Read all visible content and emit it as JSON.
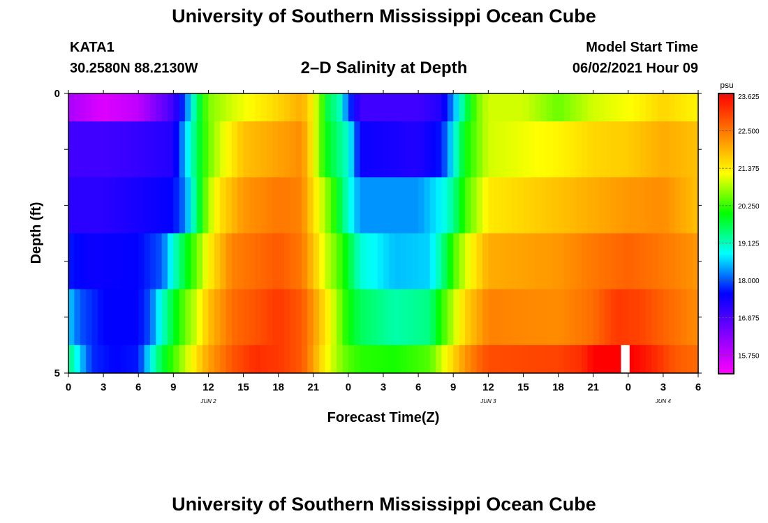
{
  "page": {
    "title_top": "University of Southern Mississippi Ocean Cube",
    "title_bottom": "University of Southern Mississippi Ocean Cube",
    "station": "KATA1",
    "coords": "30.2580N  88.2130W",
    "subtitle": "2–D Salinity at Depth",
    "model_start_label": "Model Start Time",
    "model_start_value": "06/02/2021 Hour 09"
  },
  "chart_data": {
    "type": "heatmap",
    "title": "2–D Salinity at Depth",
    "xlabel": "Forecast Time(Z)",
    "ylabel": "Depth (ft)",
    "x_tick_labels": [
      "0",
      "3",
      "6",
      "9",
      "12",
      "15",
      "18",
      "21",
      "0",
      "3",
      "6",
      "9",
      "12",
      "15",
      "18",
      "21",
      "0",
      "3",
      "6"
    ],
    "day_labels": [
      {
        "text": "JUN 2",
        "hour": 12
      },
      {
        "text": "JUN 3",
        "hour": 36
      },
      {
        "text": "JUN 4",
        "hour": 51
      }
    ],
    "y_tick_labels": [
      "0",
      "5"
    ],
    "y_range": [
      0,
      5
    ],
    "x_range_hours": [
      0,
      54
    ],
    "colorbar": {
      "unit": "psu",
      "min": 15.19,
      "max": 23.625,
      "tick_labels": [
        "23.625",
        "22.500",
        "21.375",
        "20.250",
        "19.125",
        "18.000",
        "16.875",
        "15.750"
      ],
      "colors": [
        "#ff00ff",
        "#8000ff",
        "#0000ff",
        "#00ffff",
        "#00ff00",
        "#ffff00",
        "#ff8000",
        "#ff0000"
      ]
    },
    "missing_hours": [
      47.5
    ],
    "profiles": [
      {
        "depth_band": "0–0.5",
        "keyframes": [
          [
            0,
            16.0
          ],
          [
            3,
            15.5
          ],
          [
            6,
            15.8
          ],
          [
            9,
            17.0
          ],
          [
            10,
            18.0
          ],
          [
            11,
            19.5
          ],
          [
            12,
            20.6
          ],
          [
            14,
            21.0
          ],
          [
            16,
            21.3
          ],
          [
            18,
            21.6
          ],
          [
            20,
            22.0
          ],
          [
            21,
            21.3
          ],
          [
            22,
            20.0
          ],
          [
            22.5,
            19.3
          ],
          [
            23,
            19.5
          ],
          [
            24,
            18.0
          ],
          [
            25,
            17.0
          ],
          [
            27,
            17.0
          ],
          [
            30,
            17.0
          ],
          [
            32,
            17.3
          ],
          [
            33,
            18.3
          ],
          [
            34,
            19.5
          ],
          [
            35,
            20.5
          ],
          [
            36,
            21.0
          ],
          [
            39,
            21.0
          ],
          [
            42,
            20.5
          ],
          [
            45,
            21.0
          ],
          [
            48,
            21.2
          ],
          [
            51,
            21.6
          ],
          [
            54,
            21.3
          ]
        ]
      },
      {
        "depth_band": "0.5–1.5",
        "keyframes": [
          [
            0,
            17.0
          ],
          [
            3,
            17.0
          ],
          [
            6,
            17.1
          ],
          [
            9,
            17.3
          ],
          [
            10,
            18.5
          ],
          [
            11,
            19.6
          ],
          [
            12,
            20.5
          ],
          [
            13,
            21.0
          ],
          [
            15,
            21.8
          ],
          [
            18,
            22.1
          ],
          [
            20,
            22.3
          ],
          [
            21,
            21.3
          ],
          [
            22,
            20.0
          ],
          [
            23,
            19.5
          ],
          [
            24,
            19.0
          ],
          [
            25,
            17.5
          ],
          [
            30,
            17.3
          ],
          [
            32,
            17.7
          ],
          [
            33,
            18.8
          ],
          [
            34,
            20.0
          ],
          [
            35,
            20.5
          ],
          [
            36,
            21.0
          ],
          [
            42,
            21.3
          ],
          [
            45,
            21.6
          ],
          [
            48,
            21.7
          ],
          [
            51,
            22.0
          ],
          [
            54,
            21.8
          ]
        ]
      },
      {
        "depth_band": "1.5–2.5",
        "keyframes": [
          [
            0,
            17.2
          ],
          [
            3,
            17.2
          ],
          [
            6,
            17.4
          ],
          [
            9,
            17.6
          ],
          [
            10,
            18.2
          ],
          [
            11,
            19.5
          ],
          [
            12,
            20.8
          ],
          [
            13,
            21.5
          ],
          [
            15,
            22.2
          ],
          [
            18,
            22.5
          ],
          [
            20,
            22.4
          ],
          [
            21,
            21.5
          ],
          [
            22,
            20.8
          ],
          [
            23,
            20.0
          ],
          [
            24,
            19.0
          ],
          [
            25,
            18.3
          ],
          [
            30,
            18.3
          ],
          [
            32,
            18.8
          ],
          [
            33,
            19.3
          ],
          [
            34,
            20.3
          ],
          [
            35,
            20.8
          ],
          [
            36,
            21.4
          ],
          [
            42,
            21.8
          ],
          [
            45,
            22.0
          ],
          [
            48,
            22.2
          ],
          [
            51,
            22.3
          ],
          [
            54,
            21.8
          ]
        ]
      },
      {
        "depth_band": "2.5–3.5",
        "keyframes": [
          [
            0,
            17.7
          ],
          [
            2,
            17.5
          ],
          [
            6,
            17.6
          ],
          [
            8,
            18.0
          ],
          [
            9,
            19.0
          ],
          [
            10,
            19.8
          ],
          [
            11,
            20.5
          ],
          [
            12,
            21.3
          ],
          [
            14,
            22.4
          ],
          [
            18,
            22.8
          ],
          [
            20,
            22.5
          ],
          [
            21,
            21.8
          ],
          [
            22,
            21.0
          ],
          [
            23,
            20.5
          ],
          [
            24,
            19.8
          ],
          [
            25,
            19.0
          ],
          [
            28,
            18.5
          ],
          [
            31,
            18.6
          ],
          [
            32,
            19.3
          ],
          [
            33,
            20.3
          ],
          [
            34,
            21.0
          ],
          [
            35,
            21.5
          ],
          [
            36,
            22.0
          ],
          [
            42,
            22.2
          ],
          [
            45,
            22.5
          ],
          [
            48,
            22.7
          ],
          [
            51,
            22.5
          ],
          [
            54,
            22.2
          ]
        ]
      },
      {
        "depth_band": "3.5–4.5",
        "keyframes": [
          [
            0,
            18.6
          ],
          [
            1,
            18.0
          ],
          [
            3,
            17.6
          ],
          [
            6,
            17.6
          ],
          [
            7,
            18.0
          ],
          [
            8,
            19.0
          ],
          [
            9,
            19.8
          ],
          [
            10,
            20.5
          ],
          [
            11,
            21.0
          ],
          [
            12,
            21.8
          ],
          [
            14,
            22.6
          ],
          [
            18,
            23.1
          ],
          [
            20,
            22.8
          ],
          [
            21,
            22.2
          ],
          [
            22,
            21.5
          ],
          [
            23,
            20.8
          ],
          [
            24,
            20.0
          ],
          [
            25,
            19.6
          ],
          [
            28,
            19.2
          ],
          [
            31,
            19.4
          ],
          [
            32,
            20.2
          ],
          [
            33,
            20.9
          ],
          [
            34,
            21.6
          ],
          [
            35,
            22.0
          ],
          [
            36,
            22.4
          ],
          [
            42,
            22.3
          ],
          [
            45,
            22.6
          ],
          [
            47,
            23.1
          ],
          [
            49,
            23.0
          ],
          [
            51,
            22.7
          ],
          [
            54,
            22.3
          ]
        ]
      },
      {
        "depth_band": "4.5–5",
        "keyframes": [
          [
            0,
            19.5
          ],
          [
            1,
            18.6
          ],
          [
            2,
            17.8
          ],
          [
            4,
            17.6
          ],
          [
            6,
            17.7
          ],
          [
            7,
            18.8
          ],
          [
            8,
            19.7
          ],
          [
            9,
            20.3
          ],
          [
            10,
            20.9
          ],
          [
            11,
            21.5
          ],
          [
            12,
            22.1
          ],
          [
            14,
            22.8
          ],
          [
            16,
            23.2
          ],
          [
            18,
            23.1
          ],
          [
            20,
            22.8
          ],
          [
            21,
            22.1
          ],
          [
            22,
            21.3
          ],
          [
            23,
            20.8
          ],
          [
            24,
            20.4
          ],
          [
            25,
            20.2
          ],
          [
            28,
            20.1
          ],
          [
            31,
            20.4
          ],
          [
            32,
            21.0
          ],
          [
            33,
            21.6
          ],
          [
            34,
            22.2
          ],
          [
            35,
            22.6
          ],
          [
            36,
            22.9
          ],
          [
            42,
            23.0
          ],
          [
            44,
            23.2
          ],
          [
            45,
            23.6
          ],
          [
            47,
            23.9
          ],
          [
            48,
            23.7
          ],
          [
            49,
            23.5
          ],
          [
            50,
            23.3
          ],
          [
            52,
            22.8
          ],
          [
            54,
            22.6
          ]
        ]
      }
    ]
  }
}
